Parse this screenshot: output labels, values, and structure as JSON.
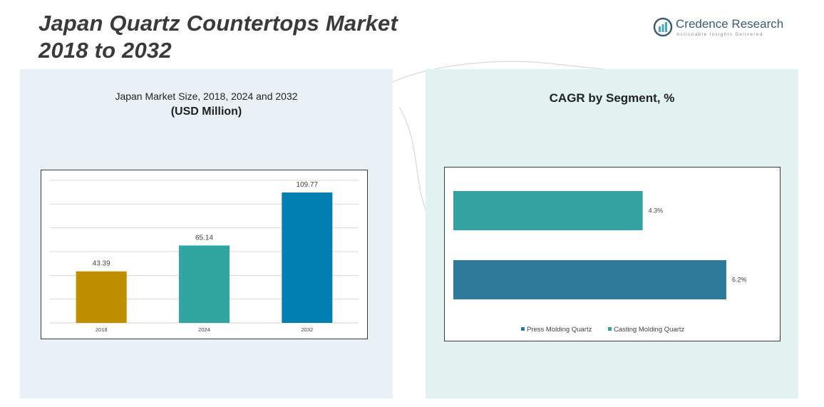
{
  "page": {
    "title_line1": "Japan Quartz Countertops Market",
    "title_line2": "2018 to 2032"
  },
  "brand": {
    "name": "Credence Research",
    "tagline": "Actionable Insights Delivered",
    "color": "#3f5b74"
  },
  "left_panel": {
    "heading": "Japan Market Size, 2018, 2024 and 2032",
    "subheading": "(USD Million)"
  },
  "right_panel": {
    "heading": "CAGR by Segment, %"
  },
  "chart_data": [
    {
      "type": "bar",
      "title": "Japan Market Size, 2018, 2024 and 2032",
      "subtitle": "(USD Million)",
      "categories": [
        "2018",
        "2024",
        "2032"
      ],
      "values": [
        43.39,
        65.14,
        109.77
      ],
      "value_labels": [
        "43.39",
        "65.14",
        "109.77"
      ],
      "colors": [
        "#c08f00",
        "#30a6a0",
        "#0080b0"
      ],
      "ylim": [
        0,
        120
      ],
      "grid": true
    },
    {
      "type": "bar",
      "orientation": "horizontal",
      "title": "CAGR by Segment, %",
      "categories": [
        "Casting Molding Quartz",
        "Press Molding Quartz"
      ],
      "values": [
        4.3,
        6.2
      ],
      "value_labels": [
        "4.3%",
        "6.2%"
      ],
      "colors": [
        "#32a3a0",
        "#2e7a9b"
      ],
      "xlim": [
        0,
        6.8
      ],
      "legend": {
        "placement": "bottom",
        "items": [
          {
            "label": "Press Molding Quartz",
            "color": "#2e7a9b"
          },
          {
            "label": "Casting Molding Quartz",
            "color": "#32a3a0"
          }
        ]
      }
    }
  ]
}
